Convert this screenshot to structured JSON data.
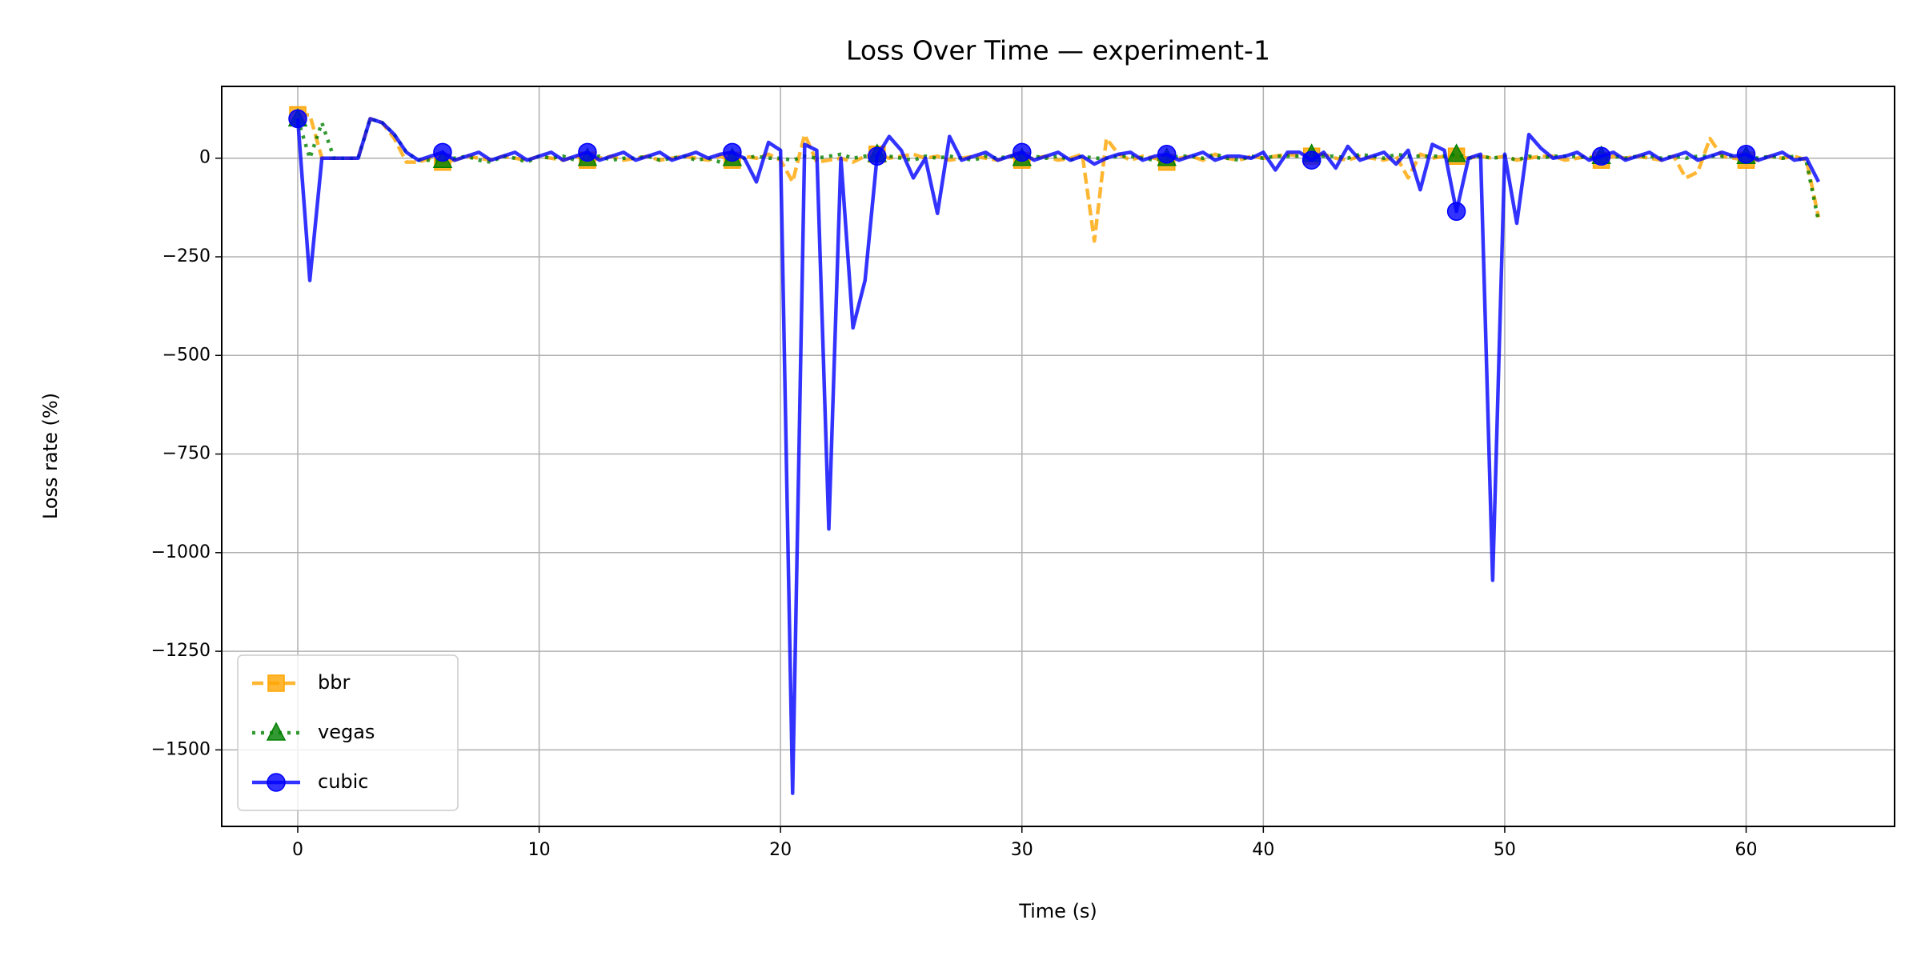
{
  "chart_data": {
    "type": "line",
    "title": "Loss Over Time — experiment-1",
    "x_label": "Time (s)",
    "y_label": "Loss rate (%)",
    "x": [
      0,
      0.5,
      1,
      1.5,
      2,
      2.5,
      3,
      3.5,
      4,
      4.5,
      5,
      5.5,
      6,
      6.5,
      7,
      7.5,
      8,
      8.5,
      9,
      9.5,
      10,
      10.5,
      11,
      11.5,
      12,
      12.5,
      13,
      13.5,
      14,
      14.5,
      15,
      15.5,
      16,
      16.5,
      17,
      17.5,
      18,
      18.5,
      19,
      19.5,
      20,
      20.5,
      21,
      21.5,
      22,
      22.5,
      23,
      23.5,
      24,
      24.5,
      25,
      25.5,
      26,
      26.5,
      27,
      27.5,
      28,
      28.5,
      29,
      29.5,
      30,
      30.5,
      31,
      31.5,
      32,
      32.5,
      33,
      33.5,
      34,
      34.5,
      35,
      35.5,
      36,
      36.5,
      37,
      37.5,
      38,
      38.5,
      39,
      39.5,
      40,
      40.5,
      41,
      41.5,
      42,
      42.5,
      43,
      43.5,
      44,
      44.5,
      45,
      45.5,
      46,
      46.5,
      47,
      47.5,
      48,
      48.5,
      49,
      49.5,
      50,
      50.5,
      51,
      51.5,
      52,
      52.5,
      53,
      53.5,
      54,
      54.5,
      55,
      55.5,
      56,
      56.5,
      57,
      57.5,
      58,
      58.5,
      59,
      59.5,
      60,
      60.5,
      61,
      61.5,
      62,
      62.5,
      63
    ],
    "series": [
      {
        "name": "bbr",
        "color": "#ffa500",
        "dash": "dashed",
        "marker": "square",
        "markevery": 12,
        "values": [
          110,
          110,
          0,
          0,
          0,
          0,
          100,
          90,
          50,
          -10,
          -10,
          0,
          -10,
          -5,
          5,
          0,
          -5,
          5,
          0,
          -5,
          5,
          0,
          -5,
          5,
          -5,
          0,
          5,
          -5,
          0,
          5,
          -5,
          0,
          5,
          0,
          -5,
          5,
          -5,
          5,
          0,
          10,
          -5,
          -60,
          60,
          -10,
          -5,
          0,
          -10,
          5,
          10,
          0,
          5,
          10,
          0,
          5,
          -5,
          0,
          5,
          0,
          -5,
          5,
          -5,
          0,
          5,
          -5,
          0,
          10,
          -210,
          50,
          10,
          -5,
          5,
          0,
          -10,
          0,
          5,
          -5,
          10,
          0,
          -5,
          5,
          0,
          5,
          10,
          5,
          5,
          10,
          0,
          -5,
          5,
          0,
          -5,
          5,
          -50,
          10,
          0,
          5,
          5,
          0,
          5,
          0,
          5,
          -5,
          0,
          5,
          5,
          -5,
          0,
          5,
          -5,
          5,
          0,
          5,
          0,
          -5,
          5,
          -50,
          -35,
          50,
          5,
          0,
          -5,
          -5,
          5,
          0,
          5,
          -5,
          -150
        ]
      },
      {
        "name": "vegas",
        "color": "#008000",
        "dash": "dotted",
        "marker": "triangle",
        "markevery": 12,
        "values": [
          100,
          0,
          90,
          0,
          0,
          0,
          100,
          90,
          60,
          15,
          -5,
          -5,
          -5,
          0,
          5,
          -5,
          -10,
          5,
          0,
          -10,
          5,
          0,
          5,
          -5,
          0,
          5,
          -5,
          0,
          0,
          5,
          -5,
          0,
          5,
          -5,
          0,
          -10,
          0,
          0,
          5,
          0,
          0,
          -5,
          5,
          0,
          5,
          10,
          0,
          5,
          10,
          5,
          0,
          -5,
          5,
          0,
          5,
          0,
          -5,
          5,
          0,
          5,
          0,
          5,
          0,
          5,
          -5,
          5,
          0,
          0,
          5,
          5,
          0,
          -5,
          0,
          5,
          5,
          0,
          10,
          0,
          -5,
          5,
          0,
          5,
          5,
          5,
          10,
          5,
          5,
          0,
          10,
          5,
          0,
          10,
          5,
          5,
          5,
          5,
          10,
          0,
          5,
          0,
          5,
          -5,
          5,
          0,
          5,
          5,
          5,
          0,
          5,
          5,
          0,
          5,
          5,
          0,
          5,
          0,
          5,
          5,
          5,
          5,
          5,
          0,
          5,
          0,
          5,
          -10,
          -160
        ]
      },
      {
        "name": "cubic",
        "color": "#0000ff",
        "dash": "solid",
        "marker": "circle",
        "markevery": 12,
        "values": [
          100,
          -310,
          0,
          0,
          0,
          0,
          100,
          90,
          60,
          15,
          -5,
          5,
          15,
          -5,
          5,
          15,
          -5,
          5,
          15,
          -5,
          5,
          15,
          -5,
          5,
          15,
          -5,
          5,
          15,
          -5,
          5,
          15,
          -5,
          5,
          15,
          0,
          10,
          15,
          0,
          -60,
          40,
          20,
          -1610,
          35,
          20,
          -940,
          0,
          -430,
          -310,
          5,
          55,
          20,
          -50,
          0,
          -140,
          55,
          -5,
          5,
          15,
          -5,
          5,
          15,
          -5,
          5,
          15,
          -5,
          5,
          -15,
          0,
          10,
          15,
          -5,
          5,
          10,
          -5,
          5,
          15,
          -5,
          5,
          5,
          0,
          15,
          -30,
          15,
          15,
          -5,
          15,
          -25,
          30,
          -5,
          5,
          15,
          -15,
          20,
          -80,
          35,
          20,
          -135,
          0,
          10,
          -1070,
          10,
          -165,
          60,
          25,
          0,
          5,
          15,
          -5,
          5,
          15,
          -5,
          5,
          15,
          -5,
          5,
          15,
          -5,
          5,
          15,
          5,
          10,
          -5,
          5,
          15,
          -5,
          0,
          -60
        ]
      }
    ],
    "xlim": [
      -3.15,
      66.15
    ],
    "ylim": [
      -1694,
      182
    ],
    "xticks": [
      0,
      10,
      20,
      30,
      40,
      50,
      60
    ],
    "yticks": [
      {
        "value": -1500,
        "label": "−1500"
      },
      {
        "value": -1250,
        "label": "−1250"
      },
      {
        "value": -1000,
        "label": "−1000"
      },
      {
        "value": -750,
        "label": "−750"
      },
      {
        "value": -500,
        "label": "−500"
      },
      {
        "value": -250,
        "label": "−250"
      },
      0
    ],
    "grid": true,
    "legend": "lower left"
  }
}
